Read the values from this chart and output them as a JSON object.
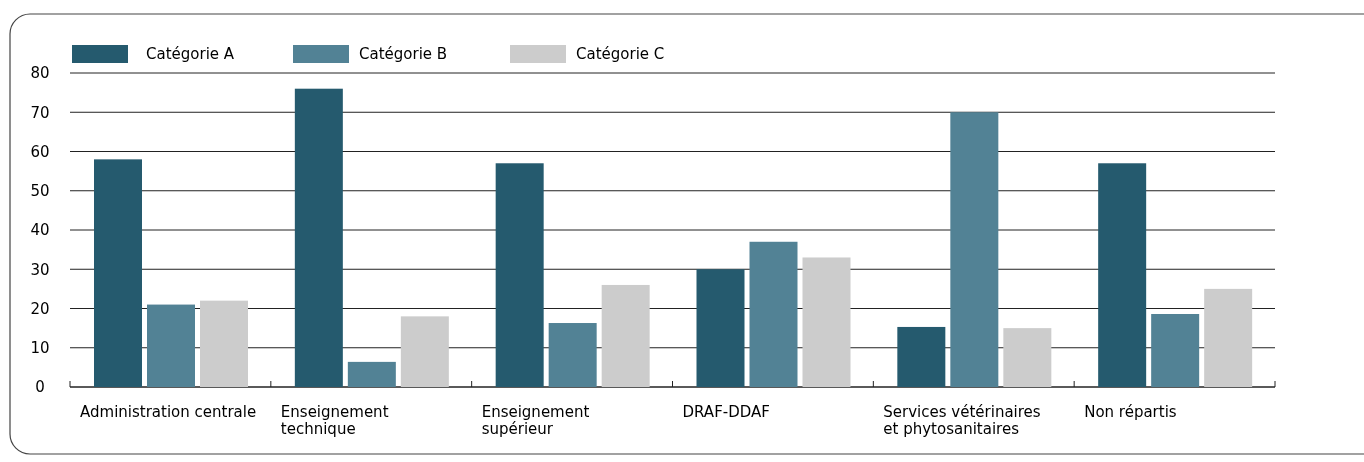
{
  "chart_data": {
    "type": "bar",
    "categories": [
      "Administration centrale",
      "Enseignement\ntechnique",
      "Enseignement\nsupérieur",
      "DRAF-DDAF",
      "Services vétérinaires\net phytosanitaires",
      "Non répartis"
    ],
    "series": [
      {
        "name": "Catégorie A",
        "color": "#255a6e",
        "values": [
          58,
          76,
          57,
          30,
          15.3,
          57
        ]
      },
      {
        "name": "Catégorie B",
        "color": "#528295",
        "values": [
          21,
          6.4,
          16.3,
          37,
          70,
          18.6
        ]
      },
      {
        "name": "Catégorie C",
        "color": "#cccccc",
        "values": [
          22,
          18,
          26,
          33,
          15,
          25
        ]
      }
    ],
    "ylim": [
      0,
      80
    ],
    "yticks": [
      0,
      10,
      20,
      30,
      40,
      50,
      60,
      70,
      80
    ],
    "grid": "y",
    "legend": "top left"
  }
}
